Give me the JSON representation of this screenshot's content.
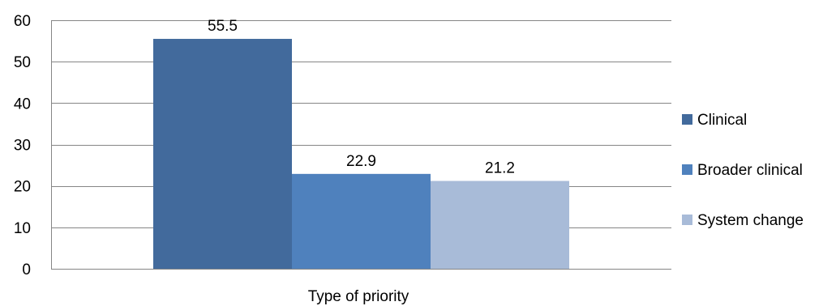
{
  "chart_data": {
    "type": "bar",
    "categories": [
      ""
    ],
    "series": [
      {
        "name": "Clinical",
        "values": [
          55.5
        ],
        "color": "#426A9C"
      },
      {
        "name": "Broader clinical",
        "values": [
          22.9
        ],
        "color": "#4F81BD"
      },
      {
        "name": "System change",
        "values": [
          21.2
        ],
        "color": "#A8BBD8"
      }
    ],
    "title": "",
    "xlabel": "Type of priority",
    "ylabel": "",
    "ylim": [
      0,
      60
    ],
    "yticks": [
      0,
      10,
      20,
      30,
      40,
      50,
      60
    ],
    "grid": true,
    "legend_position": "right",
    "data_labels": [
      "55.5",
      "22.9",
      "21.2"
    ]
  }
}
